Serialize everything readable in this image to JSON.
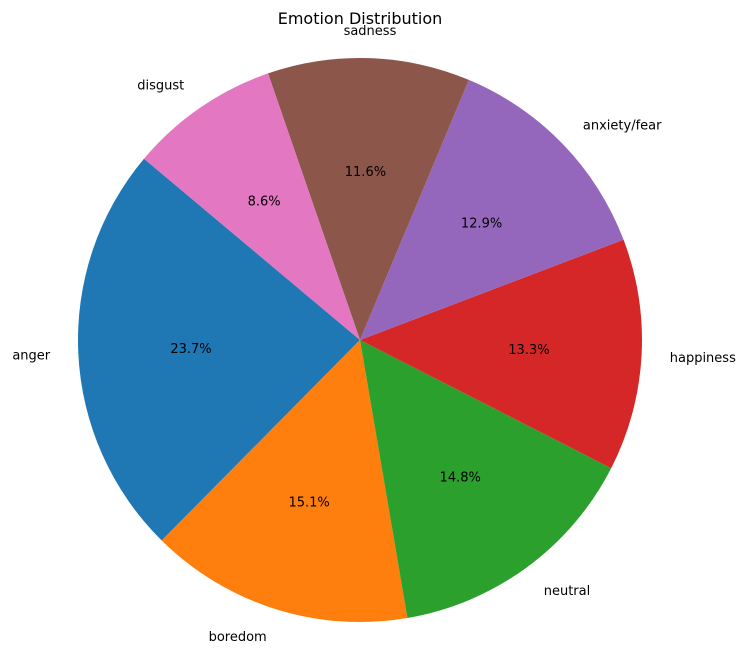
{
  "chart_data": {
    "type": "pie",
    "title": "Emotion Distribution",
    "start_angle_deg": 140,
    "direction": "counterclockwise",
    "slices": [
      {
        "label": "anger",
        "value": 23.7,
        "pct_label": "23.7%",
        "color": "#1f77b4"
      },
      {
        "label": "boredom",
        "value": 15.1,
        "pct_label": "15.1%",
        "color": "#ff7f0e"
      },
      {
        "label": "neutral",
        "value": 14.8,
        "pct_label": "14.8%",
        "color": "#2ca02c"
      },
      {
        "label": "happiness",
        "value": 13.3,
        "pct_label": "13.3%",
        "color": "#d62728"
      },
      {
        "label": "anxiety/fear",
        "value": 12.9,
        "pct_label": "12.9%",
        "color": "#9467bd"
      },
      {
        "label": "sadness",
        "value": 11.6,
        "pct_label": "11.6%",
        "color": "#8c564b"
      },
      {
        "label": "disgust",
        "value": 8.6,
        "pct_label": "8.6%",
        "color": "#e377c2"
      }
    ]
  }
}
